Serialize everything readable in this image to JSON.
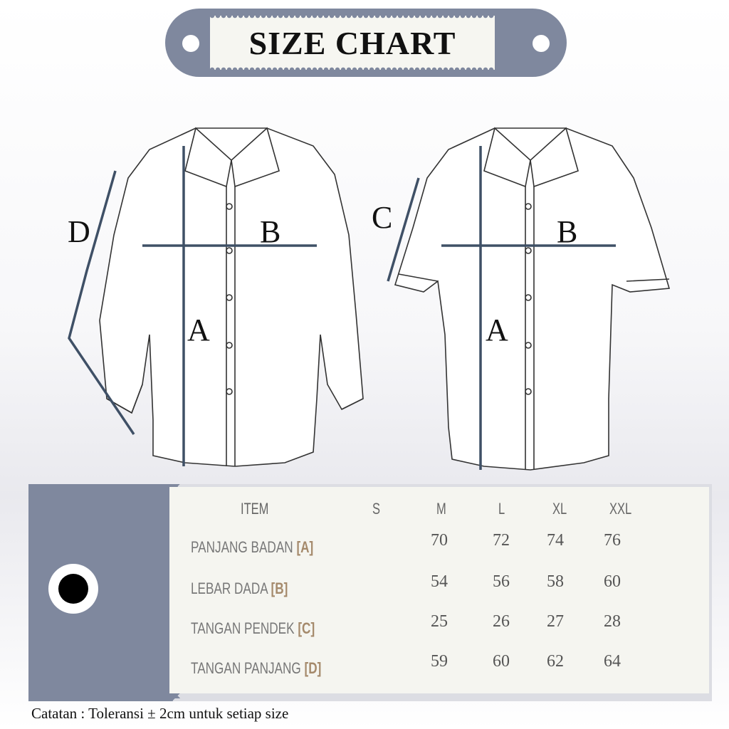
{
  "banner": {
    "title": "SIZE CHART"
  },
  "diagram": {
    "long_sleeve": {
      "labels": {
        "length": "A",
        "chest": "B",
        "sleeve": "D"
      }
    },
    "short_sleeve": {
      "labels": {
        "length": "A",
        "chest": "B",
        "sleeve": "C"
      }
    },
    "line_color": "#3f5066"
  },
  "table": {
    "headers": [
      "ITEM",
      "S",
      "M",
      "L",
      "XL",
      "XXL"
    ],
    "rows": [
      {
        "label": "PANJANG BADAN",
        "code": "[A]",
        "values": [
          "",
          "70",
          "72",
          "74",
          "76"
        ]
      },
      {
        "label": "LEBAR DADA",
        "code": "[B]",
        "values": [
          "",
          "54",
          "56",
          "58",
          "60"
        ]
      },
      {
        "label": "TANGAN PENDEK",
        "code": "[C]",
        "values": [
          "",
          "25",
          "26",
          "27",
          "28"
        ]
      },
      {
        "label": "TANGAN PANJANG",
        "code": "[D]",
        "values": [
          "",
          "59",
          "60",
          "62",
          "64"
        ]
      }
    ]
  },
  "note": "Catatan : Toleransi  ± 2cm untuk setiap size",
  "colors": {
    "accent_gray": "#7f889e",
    "code_brown": "#a58a6c",
    "measure_line": "#3f5066"
  }
}
